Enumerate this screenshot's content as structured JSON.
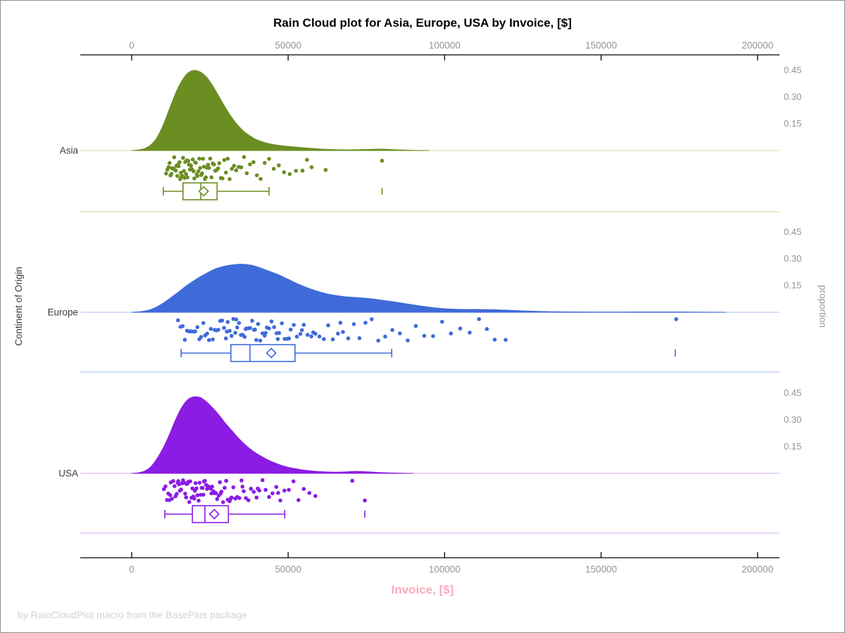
{
  "figure": {
    "title": "Rain Cloud plot for Asia, Europe, USA by Invoice, [$]",
    "x_axis_label": "Invoice, [$]",
    "y_axis_label": "Continent of Origin",
    "right_axis_label": "proportion",
    "footer": "by RainCloudPlot macro from the BasePlus package"
  },
  "style": {
    "background": "#ffffff",
    "border": "#8f8f8f",
    "title_color": "#000000",
    "x_label_color": "#f8abbc",
    "tick_label_color": "#949494",
    "category_label_color": "#3d3d3d",
    "right_label_color": "#9a9a9a",
    "footer_color": "#d2d2d2",
    "axis_line_color": "#000000"
  },
  "chart_data": {
    "type": "raincloud",
    "subtype": "half-violin density (cloud) + jittered strip points (rain) + box plot with mean diamond and outlier ticks, one panel per continent",
    "title": "Rain Cloud plot for Asia, Europe, USA by Invoice, [$]",
    "xlabel": "Invoice, [$]",
    "ylabel": "Continent of Origin",
    "ylabel_right": "proportion",
    "legend": "none",
    "grid": "off",
    "x_axis": {
      "min": 0,
      "max": 200000,
      "tick_values": [
        0,
        50000,
        100000,
        150000,
        200000
      ],
      "tick_labels": [
        "0",
        "50000",
        "100000",
        "150000",
        "200000"
      ],
      "shown_top_and_bottom": true
    },
    "proportion_axis": {
      "tick_values": [
        0.15,
        0.3,
        0.45
      ],
      "tick_labels": [
        "0.15",
        "0.30",
        "0.45"
      ],
      "repeated_per_panel": true
    },
    "groups": [
      {
        "name": "Asia",
        "color": "#6b8e23",
        "light_color": "#d4dfb3",
        "density": [
          [
            0,
            0
          ],
          [
            2000,
            0.003
          ],
          [
            4000,
            0.01
          ],
          [
            6000,
            0.03
          ],
          [
            8000,
            0.07
          ],
          [
            10000,
            0.14
          ],
          [
            12000,
            0.23
          ],
          [
            14000,
            0.32
          ],
          [
            16000,
            0.39
          ],
          [
            18000,
            0.435
          ],
          [
            20000,
            0.45
          ],
          [
            22000,
            0.44
          ],
          [
            24000,
            0.41
          ],
          [
            26000,
            0.36
          ],
          [
            28000,
            0.3
          ],
          [
            30000,
            0.24
          ],
          [
            32000,
            0.185
          ],
          [
            34000,
            0.14
          ],
          [
            36000,
            0.105
          ],
          [
            38000,
            0.08
          ],
          [
            40000,
            0.06
          ],
          [
            44000,
            0.038
          ],
          [
            48000,
            0.027
          ],
          [
            52000,
            0.02
          ],
          [
            56000,
            0.014
          ],
          [
            60000,
            0.009
          ],
          [
            65000,
            0.005
          ],
          [
            70000,
            0.004
          ],
          [
            75000,
            0.006
          ],
          [
            80000,
            0.008
          ],
          [
            85000,
            0.004
          ],
          [
            90000,
            0.001
          ],
          [
            95000,
            0
          ]
        ],
        "box": {
          "whisker_low": 10100,
          "q1": 16400,
          "median": 22100,
          "q3": 27300,
          "whisker_high": 43900,
          "mean": 23000,
          "outliers": [
            80000
          ]
        },
        "points": [
          11000,
          11400,
          11800,
          12100,
          12400,
          12700,
          12900,
          13100,
          13400,
          13600,
          13900,
          14100,
          14300,
          14600,
          14800,
          15000,
          15300,
          15500,
          15700,
          16000,
          16200,
          16400,
          16700,
          16900,
          17100,
          17400,
          17600,
          17800,
          18100,
          18300,
          18600,
          18800,
          19000,
          19300,
          19500,
          19800,
          20000,
          20300,
          20500,
          20800,
          21000,
          21300,
          21600,
          21900,
          22200,
          22500,
          22800,
          23100,
          23400,
          23700,
          24000,
          24400,
          24700,
          25100,
          25500,
          25900,
          26300,
          26700,
          27100,
          27600,
          28000,
          28500,
          29000,
          29600,
          30100,
          30700,
          31300,
          32000,
          32700,
          33400,
          34200,
          35000,
          35900,
          36800,
          37800,
          38900,
          40000,
          41200,
          42500,
          43900,
          45400,
          47000,
          48700,
          50500,
          52500,
          54600,
          56000,
          57500,
          62000,
          80000
        ]
      },
      {
        "name": "Europe",
        "color": "#3f6bd9",
        "light_color": "#b9c9ef",
        "density": [
          [
            0,
            0
          ],
          [
            3000,
            0.004
          ],
          [
            6000,
            0.015
          ],
          [
            9000,
            0.04
          ],
          [
            12000,
            0.075
          ],
          [
            15000,
            0.115
          ],
          [
            18000,
            0.155
          ],
          [
            21000,
            0.19
          ],
          [
            24000,
            0.22
          ],
          [
            27000,
            0.245
          ],
          [
            30000,
            0.26
          ],
          [
            33000,
            0.268
          ],
          [
            35000,
            0.27
          ],
          [
            38000,
            0.265
          ],
          [
            41000,
            0.25
          ],
          [
            44000,
            0.23
          ],
          [
            47000,
            0.21
          ],
          [
            50000,
            0.185
          ],
          [
            53000,
            0.16
          ],
          [
            56000,
            0.138
          ],
          [
            59000,
            0.12
          ],
          [
            62000,
            0.105
          ],
          [
            65000,
            0.095
          ],
          [
            68000,
            0.088
          ],
          [
            71000,
            0.084
          ],
          [
            74000,
            0.08
          ],
          [
            77000,
            0.075
          ],
          [
            80000,
            0.068
          ],
          [
            84000,
            0.058
          ],
          [
            88000,
            0.047
          ],
          [
            92000,
            0.036
          ],
          [
            96000,
            0.027
          ],
          [
            100000,
            0.02
          ],
          [
            105000,
            0.016
          ],
          [
            110000,
            0.016
          ],
          [
            115000,
            0.015
          ],
          [
            120000,
            0.012
          ],
          [
            125000,
            0.008
          ],
          [
            130000,
            0.005
          ],
          [
            136000,
            0.003
          ],
          [
            142000,
            0.002
          ],
          [
            150000,
            0.0015
          ],
          [
            158000,
            0.0015
          ],
          [
            166000,
            0.002
          ],
          [
            174000,
            0.002
          ],
          [
            182000,
            0.001
          ],
          [
            190000,
            0
          ]
        ],
        "box": {
          "whisker_low": 15800,
          "q1": 31700,
          "median": 37800,
          "q3": 52200,
          "whisker_high": 83100,
          "mean": 44600,
          "outliers": [
            173700
          ]
        },
        "points": [
          14800,
          15600,
          16300,
          17000,
          17700,
          18400,
          19000,
          19700,
          20300,
          21000,
          21600,
          22200,
          22900,
          23500,
          24100,
          24700,
          25300,
          25900,
          26500,
          27100,
          27700,
          28300,
          28900,
          29500,
          30100,
          30400,
          30700,
          31300,
          31900,
          32500,
          33100,
          33400,
          33700,
          34300,
          34900,
          35500,
          36100,
          36400,
          36700,
          37300,
          37900,
          38500,
          39100,
          39400,
          39800,
          40400,
          41100,
          41800,
          42500,
          42800,
          43200,
          43900,
          44700,
          45500,
          46300,
          46700,
          47100,
          48000,
          48900,
          49800,
          50300,
          50800,
          51800,
          52800,
          53900,
          54400,
          55000,
          56200,
          57400,
          58000,
          58700,
          60000,
          61400,
          62800,
          64300,
          65900,
          66700,
          67500,
          69200,
          71000,
          72800,
          74700,
          76700,
          78800,
          81000,
          83300,
          85700,
          88200,
          90800,
          93500,
          96300,
          99200,
          102000,
          105000,
          108000,
          111000,
          113500,
          116000,
          119500,
          174000
        ]
      },
      {
        "name": "USA",
        "color": "#8b1ce3",
        "light_color": "#ddbbf3",
        "density": [
          [
            0,
            0
          ],
          [
            2000,
            0.003
          ],
          [
            4000,
            0.012
          ],
          [
            6000,
            0.035
          ],
          [
            8000,
            0.08
          ],
          [
            10000,
            0.14
          ],
          [
            12000,
            0.215
          ],
          [
            14000,
            0.3
          ],
          [
            16000,
            0.37
          ],
          [
            18000,
            0.415
          ],
          [
            20000,
            0.43
          ],
          [
            22000,
            0.425
          ],
          [
            24000,
            0.4
          ],
          [
            26000,
            0.365
          ],
          [
            28000,
            0.325
          ],
          [
            30000,
            0.28
          ],
          [
            32000,
            0.24
          ],
          [
            34000,
            0.2
          ],
          [
            36000,
            0.165
          ],
          [
            38000,
            0.135
          ],
          [
            40000,
            0.11
          ],
          [
            42000,
            0.09
          ],
          [
            44000,
            0.072
          ],
          [
            46000,
            0.057
          ],
          [
            48000,
            0.044
          ],
          [
            50000,
            0.034
          ],
          [
            53000,
            0.024
          ],
          [
            56000,
            0.016
          ],
          [
            60000,
            0.01
          ],
          [
            64000,
            0.007
          ],
          [
            68000,
            0.008
          ],
          [
            71000,
            0.011
          ],
          [
            74000,
            0.01
          ],
          [
            78000,
            0.006
          ],
          [
            82000,
            0.003
          ],
          [
            86000,
            0.001
          ],
          [
            90000,
            0
          ]
        ],
        "box": {
          "whisker_low": 10600,
          "q1": 19400,
          "median": 23400,
          "q3": 30900,
          "whisker_high": 48900,
          "mean": 26400,
          "outliers": [
            74500
          ]
        },
        "points": [
          10300,
          10800,
          11300,
          11700,
          12100,
          12300,
          12500,
          12900,
          13300,
          13700,
          14000,
          14400,
          14700,
          14900,
          15100,
          15400,
          15800,
          16100,
          16400,
          16800,
          17100,
          17400,
          17600,
          17800,
          18100,
          18400,
          18700,
          19100,
          19400,
          19700,
          20000,
          20200,
          20400,
          20700,
          21000,
          21400,
          21700,
          22000,
          22400,
          22700,
          22900,
          23100,
          23400,
          23800,
          24100,
          24500,
          24900,
          25300,
          25500,
          25700,
          26100,
          26500,
          26900,
          27300,
          27800,
          28200,
          28400,
          28700,
          29200,
          29700,
          30200,
          30700,
          31300,
          31600,
          31900,
          32500,
          33100,
          33700,
          34400,
          35100,
          35400,
          35800,
          36500,
          37300,
          38100,
          39000,
          39900,
          40300,
          40800,
          41800,
          42800,
          43900,
          45000,
          46200,
          46800,
          47500,
          48800,
          50200,
          51700,
          53300,
          55000,
          56800,
          58700,
          70500,
          74500
        ]
      }
    ]
  }
}
